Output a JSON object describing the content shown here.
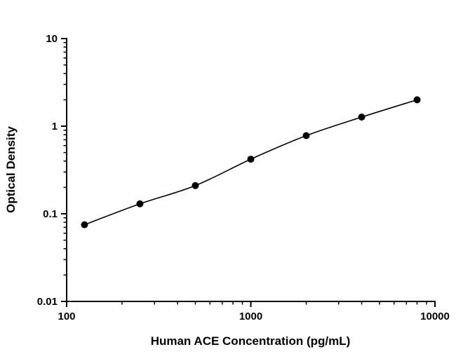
{
  "chart_data": {
    "type": "line",
    "title": "",
    "xlabel": "Human ACE Concentration (pg/mL)",
    "ylabel": "Optical Density",
    "xscale": "log",
    "yscale": "log",
    "xlim": [
      100,
      10000
    ],
    "ylim": [
      0.01,
      10
    ],
    "x": [
      125,
      250,
      500,
      1000,
      2000,
      4000,
      8000
    ],
    "y": [
      0.075,
      0.13,
      0.21,
      0.42,
      0.78,
      1.27,
      2.0
    ],
    "x_ticks": [
      100,
      1000,
      10000
    ],
    "x_tick_labels": [
      "100",
      "1000",
      "10000"
    ],
    "y_ticks": [
      0.01,
      0.1,
      1,
      10
    ],
    "y_tick_labels": [
      "0.01",
      "0.1",
      "1",
      "10"
    ],
    "grid": "off",
    "legend": "none",
    "marker": "filled-circle",
    "marker_color": "#000000",
    "line_color": "#000000",
    "axis_color": "#000000",
    "background": "#ffffff"
  }
}
